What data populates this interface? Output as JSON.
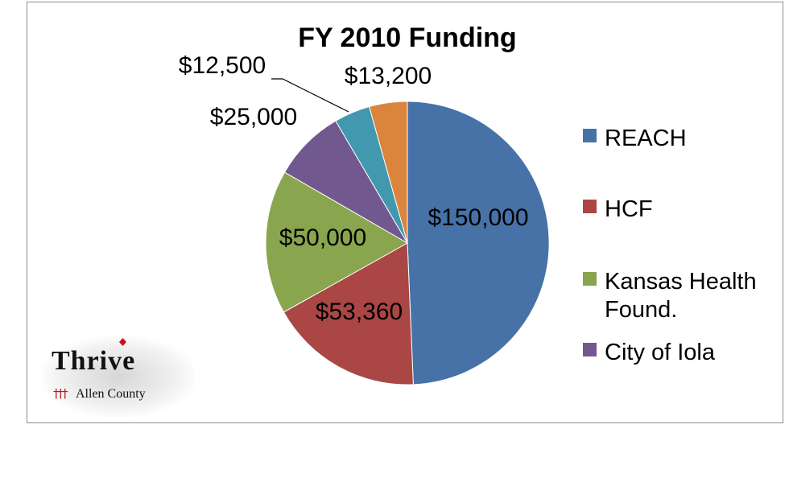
{
  "chart_data": {
    "type": "pie",
    "title": "FY 2010 Funding",
    "slices": [
      {
        "name": "REACH",
        "value": 150000,
        "label": "$150,000",
        "color": "#4672a8"
      },
      {
        "name": "HCF",
        "value": 53360,
        "label": "$53,360",
        "color": "#aa4644"
      },
      {
        "name": "Kansas Health Found.",
        "value": 50000,
        "label": "$50,000",
        "color": "#89a54e"
      },
      {
        "name": "City of Iola",
        "value": 25000,
        "label": "$25,000",
        "color": "#71588f"
      },
      {
        "name": "",
        "value": 12500,
        "label": "$12,500",
        "color": "#4198af"
      },
      {
        "name": "",
        "value": 13200,
        "label": "$13,200",
        "color": "#db843d"
      }
    ],
    "legend": {
      "placement": "right",
      "entries": [
        {
          "lines": [
            "REACH"
          ],
          "color": "#4672a8"
        },
        {
          "lines": [
            "HCF"
          ],
          "color": "#aa4644"
        },
        {
          "lines": [
            "Kansas Health",
            "Found."
          ],
          "color": "#89a54e"
        },
        {
          "lines": [
            "City of Iola"
          ],
          "color": "#71588f"
        }
      ]
    }
  },
  "logo": {
    "name": "Thrive",
    "subtitle": "Allen County",
    "people_glyphs": "†††",
    "accent_color": "#c0161b"
  }
}
